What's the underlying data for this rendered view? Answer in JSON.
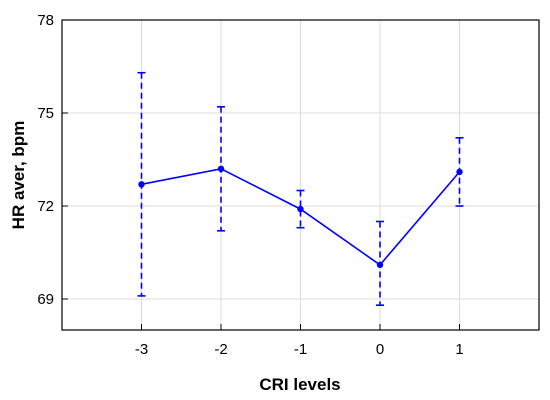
{
  "chart_data": {
    "type": "line",
    "xlabel": "CRI levels",
    "ylabel": "HR aver, bpm",
    "x_ticks": [
      "-3",
      "-2",
      "-1",
      "0",
      "1"
    ],
    "y_ticks": [
      "69",
      "72",
      "75",
      "78"
    ],
    "xlim": [
      -4,
      2
    ],
    "ylim": [
      68,
      78
    ],
    "grid": true,
    "series": [
      {
        "x": [
          -3,
          -2,
          -1,
          0,
          1
        ],
        "values": [
          72.7,
          73.2,
          71.9,
          70.1,
          73.1
        ],
        "error_low": [
          69.1,
          71.2,
          71.3,
          68.8,
          72.0
        ],
        "error_high": [
          76.3,
          75.2,
          72.5,
          71.5,
          74.2
        ]
      }
    ],
    "colors": {
      "series": "#0000ff",
      "grid": "#dcdcdc",
      "axis": "#000000"
    }
  }
}
